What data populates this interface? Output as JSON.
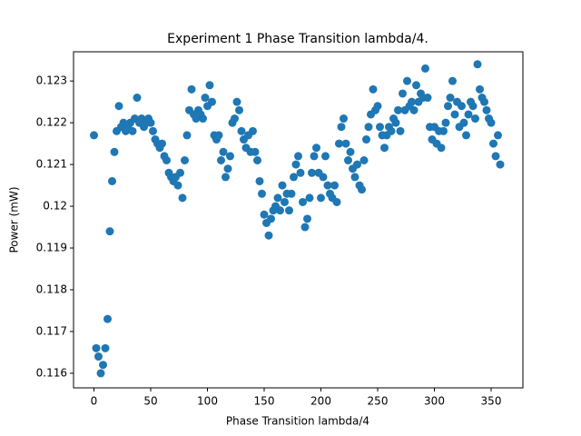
{
  "chart_data": {
    "type": "scatter",
    "title": "Experiment 1 Phase Transition lambda/4.",
    "x_label": "Phase Transition lambda/4",
    "y_label": "Power (mW)",
    "color": "#1f77b4",
    "xlim": [
      -18,
      378
    ],
    "ylim": [
      0.11565,
      0.1237
    ],
    "xticks": [
      0,
      50,
      100,
      150,
      200,
      250,
      300,
      350
    ],
    "yticks": [
      0.116,
      0.117,
      0.118,
      0.119,
      0.12,
      0.121,
      0.122,
      0.123
    ],
    "x": [
      0,
      2,
      4,
      6,
      8,
      10,
      12,
      14,
      16,
      18,
      20,
      22,
      24,
      26,
      28,
      30,
      32,
      34,
      36,
      38,
      40,
      42,
      44,
      46,
      48,
      50,
      52,
      54,
      56,
      58,
      60,
      62,
      64,
      66,
      68,
      70,
      72,
      74,
      76,
      78,
      80,
      82,
      84,
      86,
      88,
      90,
      92,
      94,
      96,
      98,
      100,
      102,
      104,
      106,
      108,
      110,
      112,
      114,
      116,
      118,
      120,
      122,
      124,
      126,
      128,
      130,
      132,
      134,
      136,
      138,
      140,
      142,
      144,
      146,
      148,
      150,
      152,
      154,
      156,
      158,
      160,
      162,
      164,
      166,
      168,
      170,
      172,
      174,
      176,
      178,
      180,
      182,
      184,
      186,
      188,
      190,
      192,
      194,
      196,
      198,
      200,
      202,
      204,
      206,
      208,
      210,
      212,
      214,
      216,
      218,
      220,
      222,
      224,
      226,
      228,
      230,
      232,
      234,
      236,
      238,
      240,
      242,
      244,
      246,
      248,
      250,
      252,
      254,
      256,
      258,
      260,
      262,
      264,
      266,
      268,
      270,
      272,
      274,
      276,
      278,
      280,
      282,
      284,
      286,
      288,
      290,
      292,
      294,
      296,
      298,
      300,
      302,
      304,
      306,
      308,
      310,
      312,
      314,
      316,
      318,
      320,
      322,
      324,
      326,
      328,
      330,
      332,
      334,
      336,
      338,
      340,
      342,
      344,
      346,
      348,
      350,
      352,
      354,
      356,
      358
    ],
    "values": [
      0.1217,
      0.1166,
      0.1164,
      0.116,
      0.1162,
      0.1166,
      0.1173,
      0.1194,
      0.1206,
      0.1213,
      0.1218,
      0.1224,
      0.1219,
      0.122,
      0.1218,
      0.1219,
      0.122,
      0.1218,
      0.1221,
      0.1226,
      0.122,
      0.1221,
      0.1219,
      0.122,
      0.1221,
      0.122,
      0.1218,
      0.1216,
      0.1215,
      0.1214,
      0.1215,
      0.1212,
      0.1211,
      0.1208,
      0.1207,
      0.1206,
      0.1207,
      0.1205,
      0.1208,
      0.1202,
      0.1211,
      0.1217,
      0.1223,
      0.1228,
      0.1222,
      0.1221,
      0.1223,
      0.1222,
      0.1221,
      0.1226,
      0.1224,
      0.1229,
      0.1225,
      0.1217,
      0.1216,
      0.1217,
      0.1211,
      0.1213,
      0.1207,
      0.1209,
      0.1212,
      0.122,
      0.1221,
      0.1225,
      0.1223,
      0.1218,
      0.1216,
      0.1214,
      0.1217,
      0.1213,
      0.1218,
      0.1213,
      0.1211,
      0.1206,
      0.1203,
      0.1198,
      0.1196,
      0.1193,
      0.1197,
      0.1199,
      0.12,
      0.1202,
      0.1199,
      0.1205,
      0.1201,
      0.1203,
      0.1199,
      0.1203,
      0.1207,
      0.121,
      0.1212,
      0.1208,
      0.1201,
      0.1195,
      0.1197,
      0.1202,
      0.1208,
      0.1212,
      0.1214,
      0.1208,
      0.1202,
      0.1207,
      0.1212,
      0.1205,
      0.1203,
      0.1202,
      0.1205,
      0.1201,
      0.1215,
      0.1219,
      0.1221,
      0.1215,
      0.1211,
      0.1213,
      0.1209,
      0.1207,
      0.121,
      0.1205,
      0.1204,
      0.1211,
      0.1216,
      0.1219,
      0.1222,
      0.1228,
      0.1223,
      0.1224,
      0.1219,
      0.1217,
      0.1214,
      0.1217,
      0.1219,
      0.1218,
      0.1221,
      0.122,
      0.1223,
      0.1218,
      0.1227,
      0.1223,
      0.123,
      0.1224,
      0.1225,
      0.1223,
      0.1229,
      0.1225,
      0.1227,
      0.1226,
      0.1233,
      0.1226,
      0.1219,
      0.1216,
      0.1219,
      0.1215,
      0.1218,
      0.1214,
      0.1218,
      0.122,
      0.1224,
      0.1226,
      0.123,
      0.1222,
      0.1225,
      0.1219,
      0.1224,
      0.122,
      0.1217,
      0.1222,
      0.1225,
      0.1224,
      0.1221,
      0.1234,
      0.1228,
      0.1226,
      0.1225,
      0.1223,
      0.1221,
      0.122,
      0.1215,
      0.1212,
      0.1217,
      0.121
    ]
  }
}
